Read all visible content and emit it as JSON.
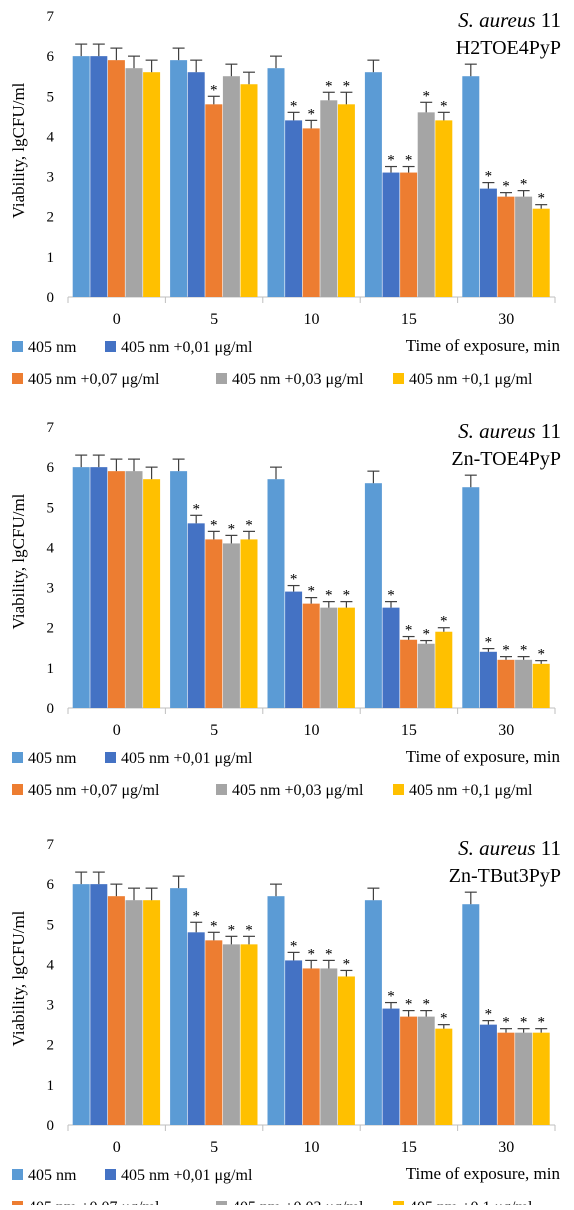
{
  "colors": {
    "series": [
      "#5b9bd5",
      "#4472c4",
      "#ed7d31",
      "#a5a5a5",
      "#ffc000"
    ],
    "axis": "#bfbfbf",
    "error_bar": "#404040"
  },
  "legend_entries": [
    "405 nm",
    "405 nm +0,01 μg/ml",
    "405 nm +0,07  μg/ml",
    "405 nm +0,03  μg/ml",
    "405 nm +0,1  μg/ml"
  ],
  "significance_marker": "*",
  "chart_data": [
    {
      "type": "bar",
      "title_italic": "S. aureus",
      "title_number": " 11",
      "subtitle": "H2TOE4PyP",
      "ylabel": "Viability, lgCFU/ml",
      "xlabel": "Time of exposure, min",
      "categories": [
        "0",
        "5",
        "10",
        "15",
        "30"
      ],
      "ylim": [
        0,
        7
      ],
      "yticks": [
        "0",
        "1",
        "2",
        "3",
        "4",
        "5",
        "6",
        "7"
      ],
      "legend_placement": "bottom",
      "series": [
        {
          "name": "405 nm",
          "values": [
            6.0,
            5.9,
            5.7,
            5.6,
            5.5
          ],
          "errors": [
            0.3,
            0.3,
            0.3,
            0.3,
            0.3
          ],
          "significant": [
            false,
            false,
            false,
            false,
            false
          ]
        },
        {
          "name": "405 nm +0,01 μg/ml",
          "values": [
            6.0,
            5.6,
            4.4,
            3.1,
            2.7
          ],
          "errors": [
            0.3,
            0.3,
            0.2,
            0.15,
            0.15
          ],
          "significant": [
            false,
            false,
            true,
            true,
            true
          ]
        },
        {
          "name": "405 nm +0,07  μg/ml",
          "values": [
            5.9,
            4.8,
            4.2,
            3.1,
            2.5
          ],
          "errors": [
            0.3,
            0.2,
            0.2,
            0.15,
            0.1
          ],
          "significant": [
            false,
            true,
            true,
            true,
            true
          ]
        },
        {
          "name": "405 nm +0,03  μg/ml",
          "values": [
            5.7,
            5.5,
            4.9,
            4.6,
            2.5
          ],
          "errors": [
            0.3,
            0.3,
            0.2,
            0.25,
            0.15
          ],
          "significant": [
            false,
            false,
            true,
            true,
            true
          ]
        },
        {
          "name": "405 nm +0,1  μg/ml",
          "values": [
            5.6,
            5.3,
            4.8,
            4.4,
            2.2
          ],
          "errors": [
            0.3,
            0.3,
            0.3,
            0.2,
            0.1
          ],
          "significant": [
            false,
            false,
            true,
            true,
            true
          ]
        }
      ]
    },
    {
      "type": "bar",
      "title_italic": "S. aureus",
      "title_number": " 11",
      "subtitle": "Zn-TOE4PyP",
      "ylabel": "Viability, lgCFU/ml",
      "xlabel": "Time of exposure, min",
      "categories": [
        "0",
        "5",
        "10",
        "15",
        "30"
      ],
      "ylim": [
        0,
        7
      ],
      "yticks": [
        "0",
        "1",
        "2",
        "3",
        "4",
        "5",
        "6",
        "7"
      ],
      "legend_placement": "bottom",
      "series": [
        {
          "name": "405 nm",
          "values": [
            6.0,
            5.9,
            5.7,
            5.6,
            5.5
          ],
          "errors": [
            0.3,
            0.3,
            0.3,
            0.3,
            0.3
          ],
          "significant": [
            false,
            false,
            false,
            false,
            false
          ]
        },
        {
          "name": "405 nm +0,01 μg/ml",
          "values": [
            6.0,
            4.6,
            2.9,
            2.5,
            1.4
          ],
          "errors": [
            0.3,
            0.2,
            0.15,
            0.15,
            0.08
          ],
          "significant": [
            false,
            true,
            true,
            true,
            true
          ]
        },
        {
          "name": "405 nm +0,07  μg/ml",
          "values": [
            5.9,
            4.2,
            2.6,
            1.7,
            1.2
          ],
          "errors": [
            0.3,
            0.2,
            0.15,
            0.08,
            0.08
          ],
          "significant": [
            false,
            true,
            true,
            true,
            true
          ]
        },
        {
          "name": "405 nm +0,03  μg/ml",
          "values": [
            5.9,
            4.1,
            2.5,
            1.6,
            1.2
          ],
          "errors": [
            0.3,
            0.2,
            0.15,
            0.08,
            0.08
          ],
          "significant": [
            false,
            true,
            true,
            true,
            true
          ]
        },
        {
          "name": "405 nm +0,1  μg/ml",
          "values": [
            5.7,
            4.2,
            2.5,
            1.9,
            1.1
          ],
          "errors": [
            0.3,
            0.2,
            0.15,
            0.1,
            0.08
          ],
          "significant": [
            false,
            true,
            true,
            true,
            true
          ]
        }
      ]
    },
    {
      "type": "bar",
      "title_italic": "S. aureus",
      "title_number": " 11",
      "subtitle": "Zn-TBut3PyP",
      "ylabel": "Viability, lgCFU/ml",
      "xlabel": "Time of exposure, min",
      "categories": [
        "0",
        "5",
        "10",
        "15",
        "30"
      ],
      "ylim": [
        0,
        7
      ],
      "yticks": [
        "0",
        "1",
        "2",
        "3",
        "4",
        "5",
        "6",
        "7"
      ],
      "legend_placement": "bottom",
      "series": [
        {
          "name": "405 nm",
          "values": [
            6.0,
            5.9,
            5.7,
            5.6,
            5.5
          ],
          "errors": [
            0.3,
            0.3,
            0.3,
            0.3,
            0.3
          ],
          "significant": [
            false,
            false,
            false,
            false,
            false
          ]
        },
        {
          "name": "405 nm +0,01 μg/ml",
          "values": [
            6.0,
            4.8,
            4.1,
            2.9,
            2.5
          ],
          "errors": [
            0.3,
            0.25,
            0.2,
            0.15,
            0.1
          ],
          "significant": [
            false,
            true,
            true,
            true,
            true
          ]
        },
        {
          "name": "405 nm +0,07  μg/ml",
          "values": [
            5.7,
            4.6,
            3.9,
            2.7,
            2.3
          ],
          "errors": [
            0.3,
            0.2,
            0.2,
            0.15,
            0.1
          ],
          "significant": [
            false,
            true,
            true,
            true,
            true
          ]
        },
        {
          "name": "405 nm +0,03  μg/ml",
          "values": [
            5.6,
            4.5,
            3.9,
            2.7,
            2.3
          ],
          "errors": [
            0.3,
            0.2,
            0.2,
            0.15,
            0.1
          ],
          "significant": [
            false,
            true,
            true,
            true,
            true
          ]
        },
        {
          "name": "405 nm +0,1  μg/ml",
          "values": [
            5.6,
            4.5,
            3.7,
            2.4,
            2.3
          ],
          "errors": [
            0.3,
            0.2,
            0.15,
            0.1,
            0.1
          ],
          "significant": [
            false,
            true,
            true,
            true,
            true
          ]
        }
      ]
    }
  ]
}
